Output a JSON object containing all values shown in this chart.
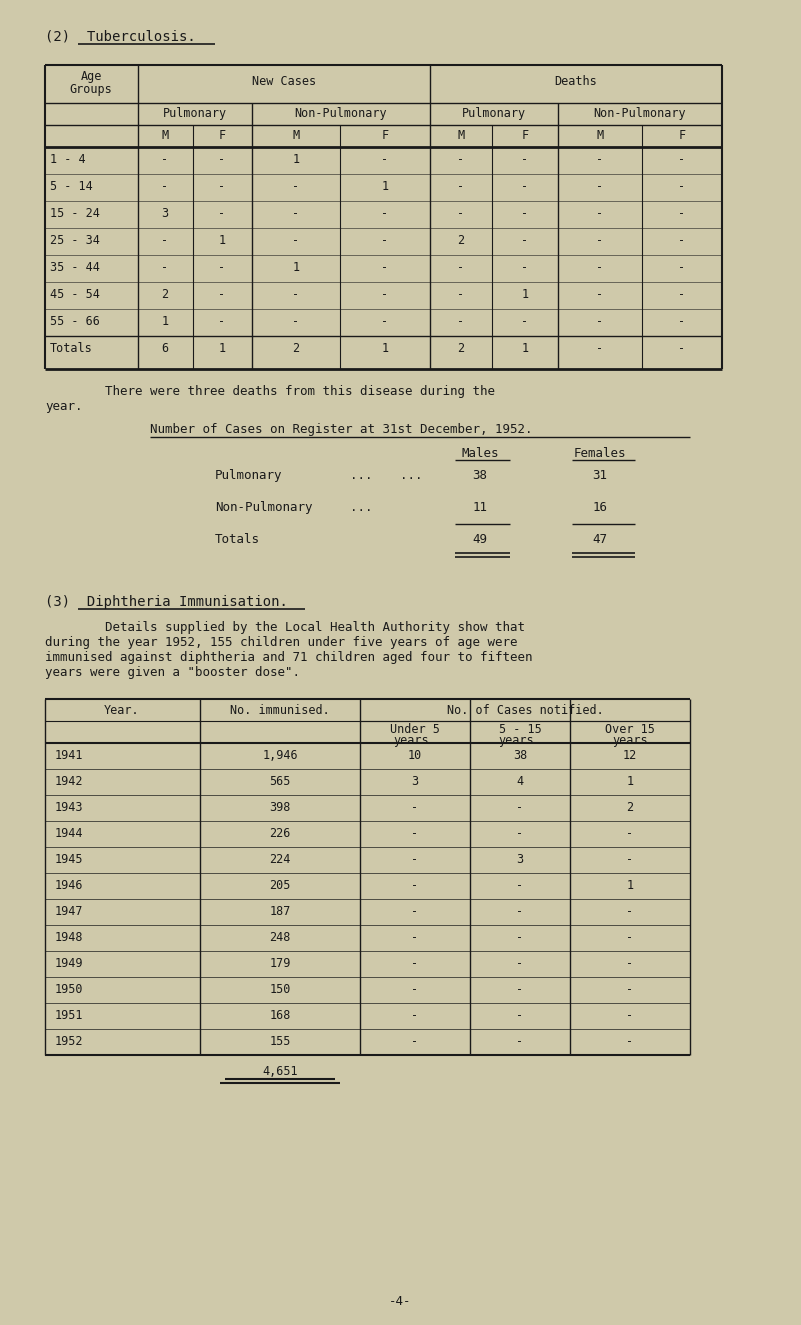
{
  "bg_color": "#cfc9aa",
  "text_color": "#1a1a1a",
  "page_title_1": "(2)  Tuberculosis.",
  "tb_rows": [
    [
      "1 - 4",
      "-",
      "-",
      "1",
      "-",
      "-",
      "-",
      "-",
      "-"
    ],
    [
      "5 - 14",
      "-",
      "-",
      "-",
      "1",
      "-",
      "-",
      "-",
      "-"
    ],
    [
      "15 - 24",
      "3",
      "-",
      "-",
      "-",
      "-",
      "-",
      "-",
      "-"
    ],
    [
      "25 - 34",
      "-",
      "1",
      "-",
      "-",
      "2",
      "-",
      "-",
      "-"
    ],
    [
      "35 - 44",
      "-",
      "-",
      "1",
      "-",
      "-",
      "-",
      "-",
      "-"
    ],
    [
      "45 - 54",
      "2",
      "-",
      "-",
      "-",
      "-",
      "1",
      "-",
      "-"
    ],
    [
      "55 - 66",
      "1",
      "-",
      "-",
      "-",
      "-",
      "-",
      "-",
      "-"
    ]
  ],
  "tb_totals": [
    "Totals",
    "6",
    "1",
    "2",
    "1",
    "2",
    "1",
    "-",
    "-"
  ],
  "para1_line1": "        There were three deaths from this disease during the",
  "para1_line2": "year.",
  "reg_title": "Number of Cases on Register at 31st December, 1952.",
  "reg_males": "Males",
  "reg_females": "Females",
  "reg_rows": [
    [
      "Pulmonary",
      "...",
      "...",
      "38",
      "31"
    ],
    [
      "Non-Pulmonary",
      "...",
      "",
      "11",
      "16"
    ],
    [
      "Totals",
      "",
      "",
      "49",
      "47"
    ]
  ],
  "sec3_title": "(3)  Diphtheria Immunisation.",
  "para2_lines": [
    "        Details supplied by the Local Health Authority show that",
    "during the year 1952, 155 children under five years of age were",
    "immunised against diphtheria and 71 children aged four to fifteen",
    "years were given a \"booster dose\"."
  ],
  "diph_rows": [
    [
      "1941",
      "1,946",
      "10",
      "38",
      "12"
    ],
    [
      "1942",
      "565",
      "3",
      "4",
      "1"
    ],
    [
      "1943",
      "398",
      "-",
      "-",
      "2"
    ],
    [
      "1944",
      "226",
      "-",
      "-",
      "-"
    ],
    [
      "1945",
      "224",
      "-",
      "3",
      "-"
    ],
    [
      "1946",
      "205",
      "-",
      "-",
      "1"
    ],
    [
      "1947",
      "187",
      "-",
      "-",
      "-"
    ],
    [
      "1948",
      "248",
      "-",
      "-",
      "-"
    ],
    [
      "1949",
      "179",
      "-",
      "-",
      "-"
    ],
    [
      "1950",
      "150",
      "-",
      "-",
      "-"
    ],
    [
      "1951",
      "168",
      "-",
      "-",
      "-"
    ],
    [
      "1952",
      "155",
      "-",
      "-",
      "-"
    ]
  ],
  "diph_total": "4,651",
  "page_num": "-4-"
}
